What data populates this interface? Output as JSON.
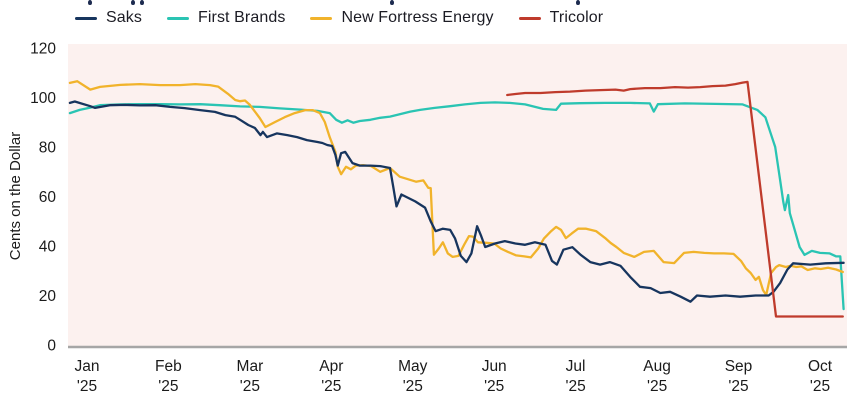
{
  "figure": {
    "cropped_top_note": "cut-off title line (only letter descenders visible at top edge)",
    "fragment_positions_x": [
      88,
      131,
      140,
      390,
      576
    ]
  },
  "legend": {
    "items": [
      {
        "label": "Saks",
        "color": "#17355e"
      },
      {
        "label": "First Brands",
        "color": "#2ac4b3"
      },
      {
        "label": "New Fortress Energy",
        "color": "#f1b32b"
      },
      {
        "label": "Tricolor",
        "color": "#bf3b2c"
      }
    ]
  },
  "axes": {
    "y_title": "Cents on the Dollar",
    "y_ticks": [
      0,
      20,
      40,
      60,
      80,
      100,
      120
    ],
    "x_ticks": [
      {
        "top": "Jan",
        "bottom": "'25"
      },
      {
        "top": "Feb",
        "bottom": "'25"
      },
      {
        "top": "Mar",
        "bottom": "'25"
      },
      {
        "top": "Apr",
        "bottom": "'25"
      },
      {
        "top": "May",
        "bottom": "'25"
      },
      {
        "top": "Jun",
        "bottom": "'25"
      },
      {
        "top": "Jul",
        "bottom": "'25"
      },
      {
        "top": "Aug",
        "bottom": "'25"
      },
      {
        "top": "Sep",
        "bottom": "'25"
      },
      {
        "top": "Oct",
        "bottom": "'25"
      }
    ],
    "plot_background": "#fcf1ef",
    "axis_line_color": "#a6a6a6",
    "label_color": "#1b1b1b"
  },
  "chart_data": {
    "type": "line",
    "title": "",
    "ylabel": "Cents on the Dollar",
    "ylim": [
      0,
      120
    ],
    "xlabel": "",
    "x_unit": "months after the Jan '25 tick (0 = Jan 2025, 9 = Oct 2025)",
    "x_range": [
      -0.25,
      9.33
    ],
    "grid": false,
    "legend_position": "top",
    "series": [
      {
        "name": "First Brands",
        "color": "#2ac4b3",
        "points": [
          [
            -0.21,
            93.7
          ],
          [
            -0.09,
            95.0
          ],
          [
            0.04,
            95.9
          ],
          [
            0.16,
            96.9
          ],
          [
            0.41,
            97.2
          ],
          [
            0.65,
            97.3
          ],
          [
            0.9,
            97.3
          ],
          [
            1.14,
            97.2
          ],
          [
            1.39,
            97.3
          ],
          [
            1.63,
            96.9
          ],
          [
            1.88,
            96.4
          ],
          [
            2.12,
            96.2
          ],
          [
            2.37,
            95.6
          ],
          [
            2.62,
            95.1
          ],
          [
            2.83,
            94.6
          ],
          [
            2.98,
            93.7
          ],
          [
            3.06,
            91.0
          ],
          [
            3.13,
            89.8
          ],
          [
            3.2,
            90.8
          ],
          [
            3.27,
            89.8
          ],
          [
            3.35,
            90.5
          ],
          [
            3.48,
            91.0
          ],
          [
            3.6,
            91.8
          ],
          [
            3.72,
            92.3
          ],
          [
            3.84,
            93.2
          ],
          [
            3.97,
            94.3
          ],
          [
            4.09,
            95.0
          ],
          [
            4.27,
            95.8
          ],
          [
            4.46,
            96.5
          ],
          [
            4.64,
            97.2
          ],
          [
            4.83,
            97.8
          ],
          [
            5.01,
            98.0
          ],
          [
            5.19,
            97.8
          ],
          [
            5.38,
            97.2
          ],
          [
            5.6,
            95.4
          ],
          [
            5.76,
            95.0
          ],
          [
            5.82,
            97.5
          ],
          [
            6.05,
            97.7
          ],
          [
            6.36,
            97.8
          ],
          [
            6.67,
            97.8
          ],
          [
            6.91,
            97.6
          ],
          [
            6.96,
            94.3
          ],
          [
            7.01,
            97.3
          ],
          [
            7.34,
            97.6
          ],
          [
            7.71,
            97.4
          ],
          [
            8.05,
            97.2
          ],
          [
            8.23,
            95.0
          ],
          [
            8.33,
            92.0
          ],
          [
            8.39,
            86.0
          ],
          [
            8.45,
            80.0
          ],
          [
            8.51,
            66.7
          ],
          [
            8.55,
            57.8
          ],
          [
            8.57,
            54.5
          ],
          [
            8.61,
            60.6
          ],
          [
            8.63,
            53.3
          ],
          [
            8.69,
            46.5
          ],
          [
            8.75,
            39.6
          ],
          [
            8.81,
            36.4
          ],
          [
            8.9,
            38.0
          ],
          [
            9.0,
            37.2
          ],
          [
            9.12,
            37.0
          ],
          [
            9.2,
            35.8
          ],
          [
            9.25,
            35.8
          ],
          [
            9.29,
            14.5
          ]
        ]
      },
      {
        "name": "New Fortress Energy",
        "color": "#f1b32b",
        "points": [
          [
            -0.21,
            105.9
          ],
          [
            -0.12,
            106.6
          ],
          [
            0.04,
            103.2
          ],
          [
            0.16,
            104.3
          ],
          [
            0.41,
            105.1
          ],
          [
            0.65,
            105.4
          ],
          [
            0.9,
            105.0
          ],
          [
            1.14,
            105.0
          ],
          [
            1.33,
            105.4
          ],
          [
            1.51,
            105.0
          ],
          [
            1.61,
            104.4
          ],
          [
            1.73,
            101.5
          ],
          [
            1.82,
            99.0
          ],
          [
            1.88,
            98.5
          ],
          [
            1.94,
            98.8
          ],
          [
            2.0,
            97.0
          ],
          [
            2.12,
            91.7
          ],
          [
            2.19,
            88.1
          ],
          [
            2.31,
            90.1
          ],
          [
            2.43,
            92.1
          ],
          [
            2.55,
            93.7
          ],
          [
            2.68,
            94.9
          ],
          [
            2.77,
            94.9
          ],
          [
            2.86,
            93.7
          ],
          [
            2.92,
            90.1
          ],
          [
            2.98,
            84.0
          ],
          [
            3.05,
            78.0
          ],
          [
            3.08,
            72.0
          ],
          [
            3.12,
            69.0
          ],
          [
            3.18,
            72.0
          ],
          [
            3.24,
            71.0
          ],
          [
            3.3,
            72.5
          ],
          [
            3.39,
            72.7
          ],
          [
            3.49,
            72.3
          ],
          [
            3.6,
            70.0
          ],
          [
            3.72,
            71.5
          ],
          [
            3.84,
            68.0
          ],
          [
            3.94,
            67.0
          ],
          [
            4.04,
            66.0
          ],
          [
            4.13,
            66.5
          ],
          [
            4.19,
            63.5
          ],
          [
            4.22,
            63.4
          ],
          [
            4.26,
            36.5
          ],
          [
            4.32,
            39.0
          ],
          [
            4.37,
            41.5
          ],
          [
            4.43,
            37.0
          ],
          [
            4.49,
            35.6
          ],
          [
            4.56,
            36.0
          ],
          [
            4.63,
            40.5
          ],
          [
            4.69,
            44.0
          ],
          [
            4.74,
            43.8
          ],
          [
            4.8,
            41.5
          ],
          [
            4.9,
            41.3
          ],
          [
            5.0,
            41.0
          ],
          [
            5.08,
            39.0
          ],
          [
            5.17,
            37.6
          ],
          [
            5.27,
            36.2
          ],
          [
            5.37,
            35.8
          ],
          [
            5.45,
            35.4
          ],
          [
            5.54,
            39.0
          ],
          [
            5.61,
            43.0
          ],
          [
            5.7,
            46.0
          ],
          [
            5.76,
            47.7
          ],
          [
            5.82,
            46.5
          ],
          [
            5.88,
            43.2
          ],
          [
            5.95,
            45.0
          ],
          [
            6.03,
            47.0
          ],
          [
            6.13,
            47.0
          ],
          [
            6.25,
            46.0
          ],
          [
            6.37,
            43.0
          ],
          [
            6.43,
            41.2
          ],
          [
            6.5,
            39.6
          ],
          [
            6.59,
            37.2
          ],
          [
            6.72,
            35.6
          ],
          [
            6.84,
            37.6
          ],
          [
            6.96,
            38.0
          ],
          [
            7.08,
            33.5
          ],
          [
            7.21,
            33.1
          ],
          [
            7.33,
            37.2
          ],
          [
            7.45,
            37.6
          ],
          [
            7.58,
            37.2
          ],
          [
            7.7,
            37.0
          ],
          [
            7.82,
            37.0
          ],
          [
            7.94,
            36.8
          ],
          [
            8.03,
            34.0
          ],
          [
            8.09,
            31.0
          ],
          [
            8.15,
            29.1
          ],
          [
            8.21,
            26.3
          ],
          [
            8.25,
            27.5
          ],
          [
            8.3,
            22.2
          ],
          [
            8.34,
            20.2
          ],
          [
            8.4,
            29.1
          ],
          [
            8.46,
            31.5
          ],
          [
            8.5,
            32.3
          ],
          [
            8.58,
            31.5
          ],
          [
            8.64,
            32.0
          ],
          [
            8.71,
            31.5
          ],
          [
            8.77,
            31.8
          ],
          [
            8.85,
            30.3
          ],
          [
            8.94,
            31.0
          ],
          [
            9.01,
            30.7
          ],
          [
            9.1,
            31.2
          ],
          [
            9.2,
            30.5
          ],
          [
            9.28,
            29.5
          ]
        ]
      },
      {
        "name": "Saks",
        "color": "#17355e",
        "points": [
          [
            -0.21,
            97.8
          ],
          [
            -0.15,
            98.4
          ],
          [
            0.04,
            96.5
          ],
          [
            0.1,
            95.8
          ],
          [
            0.28,
            96.9
          ],
          [
            0.47,
            97.0
          ],
          [
            0.65,
            96.8
          ],
          [
            0.84,
            96.9
          ],
          [
            1.02,
            96.2
          ],
          [
            1.2,
            95.7
          ],
          [
            1.39,
            94.9
          ],
          [
            1.57,
            94.2
          ],
          [
            1.7,
            92.9
          ],
          [
            1.82,
            92.2
          ],
          [
            1.88,
            91.0
          ],
          [
            1.98,
            88.9
          ],
          [
            2.06,
            87.7
          ],
          [
            2.13,
            84.8
          ],
          [
            2.16,
            86.1
          ],
          [
            2.21,
            84.0
          ],
          [
            2.33,
            85.5
          ],
          [
            2.46,
            84.8
          ],
          [
            2.58,
            84.0
          ],
          [
            2.7,
            82.8
          ],
          [
            2.83,
            82.0
          ],
          [
            2.89,
            81.6
          ],
          [
            2.95,
            80.8
          ],
          [
            3.01,
            80.4
          ],
          [
            3.05,
            76.8
          ],
          [
            3.08,
            72.5
          ],
          [
            3.12,
            77.5
          ],
          [
            3.17,
            78.0
          ],
          [
            3.26,
            73.5
          ],
          [
            3.35,
            72.5
          ],
          [
            3.48,
            72.5
          ],
          [
            3.6,
            72.3
          ],
          [
            3.72,
            71.5
          ],
          [
            3.76,
            64.0
          ],
          [
            3.8,
            56.0
          ],
          [
            3.86,
            60.8
          ],
          [
            4.03,
            58.0
          ],
          [
            4.15,
            55.5
          ],
          [
            4.22,
            50.0
          ],
          [
            4.28,
            46.0
          ],
          [
            4.37,
            47.0
          ],
          [
            4.46,
            46.5
          ],
          [
            4.52,
            43.0
          ],
          [
            4.59,
            36.0
          ],
          [
            4.66,
            33.5
          ],
          [
            4.72,
            37.0
          ],
          [
            4.79,
            48.0
          ],
          [
            4.84,
            44.0
          ],
          [
            4.89,
            39.6
          ],
          [
            5.01,
            41.0
          ],
          [
            5.13,
            42.0
          ],
          [
            5.26,
            41.0
          ],
          [
            5.38,
            40.5
          ],
          [
            5.5,
            41.5
          ],
          [
            5.63,
            40.5
          ],
          [
            5.71,
            34.0
          ],
          [
            5.77,
            32.5
          ],
          [
            5.85,
            38.5
          ],
          [
            5.96,
            39.5
          ],
          [
            6.06,
            36.5
          ],
          [
            6.18,
            33.5
          ],
          [
            6.3,
            32.5
          ],
          [
            6.42,
            33.5
          ],
          [
            6.55,
            32.0
          ],
          [
            6.67,
            27.5
          ],
          [
            6.79,
            23.5
          ],
          [
            6.92,
            23.0
          ],
          [
            7.04,
            21.0
          ],
          [
            7.16,
            21.5
          ],
          [
            7.29,
            19.5
          ],
          [
            7.41,
            17.5
          ],
          [
            7.49,
            20.0
          ],
          [
            7.65,
            19.5
          ],
          [
            7.84,
            20.0
          ],
          [
            8.02,
            19.5
          ],
          [
            8.21,
            20.0
          ],
          [
            8.37,
            20.0
          ],
          [
            8.43,
            21.5
          ],
          [
            8.51,
            25.0
          ],
          [
            8.6,
            30.5
          ],
          [
            8.67,
            33.0
          ],
          [
            8.88,
            32.5
          ],
          [
            9.07,
            33.0
          ],
          [
            9.29,
            33.2
          ]
        ]
      },
      {
        "name": "Tricolor",
        "color": "#bf3b2c",
        "points": [
          [
            5.16,
            101.0
          ],
          [
            5.26,
            101.4
          ],
          [
            5.38,
            101.8
          ],
          [
            5.57,
            101.8
          ],
          [
            5.75,
            102.2
          ],
          [
            5.93,
            102.4
          ],
          [
            6.12,
            102.8
          ],
          [
            6.3,
            103.0
          ],
          [
            6.49,
            103.2
          ],
          [
            6.59,
            102.8
          ],
          [
            6.67,
            103.4
          ],
          [
            6.85,
            103.8
          ],
          [
            7.04,
            103.8
          ],
          [
            7.22,
            104.2
          ],
          [
            7.38,
            104.0
          ],
          [
            7.53,
            104.2
          ],
          [
            7.68,
            104.6
          ],
          [
            7.84,
            104.8
          ],
          [
            7.96,
            105.4
          ],
          [
            8.05,
            106.0
          ],
          [
            8.11,
            106.3
          ],
          [
            8.46,
            11.5
          ],
          [
            9.28,
            11.5
          ]
        ]
      }
    ]
  }
}
